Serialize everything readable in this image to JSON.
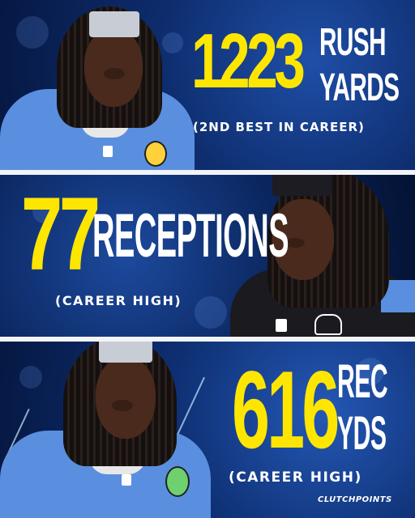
{
  "stats": [
    {
      "value": "1223",
      "label_line1": "RUSH",
      "label_line2": "YARDS",
      "note": "(2ND BEST IN CAREER)"
    },
    {
      "value": "77",
      "label_line1": "RECEPTIONS",
      "label_line2": "",
      "note": "(CAREER HIGH)"
    },
    {
      "value": "616",
      "label_line1": "REC",
      "label_line2": "YDS",
      "note": "(CAREER HIGH)"
    }
  ],
  "brand": "CLUTCHPOINTS",
  "colors": {
    "highlight": "#ffe600",
    "background": "#0b2a6b",
    "jersey_home": "#5a8fe0",
    "jersey_away": "#1a1a1f",
    "divider": "#f2f4f8"
  },
  "icons": [
    "player-photo",
    "team-patch-icon",
    "nfl-shield-icon"
  ]
}
